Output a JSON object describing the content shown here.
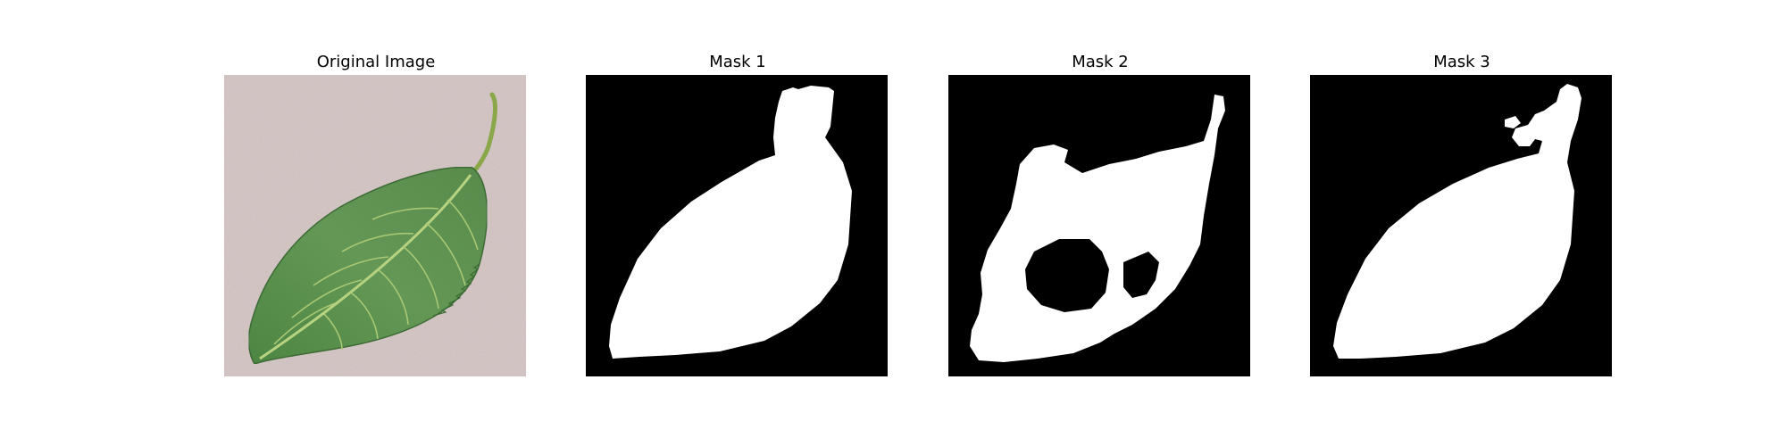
{
  "figure": {
    "panels": [
      {
        "id": "original",
        "title": "Original Image",
        "kind": "photo",
        "description_icon": "leaf-photo-icon"
      },
      {
        "id": "mask1",
        "title": "Mask 1",
        "kind": "binary-mask"
      },
      {
        "id": "mask2",
        "title": "Mask 2",
        "kind": "binary-mask"
      },
      {
        "id": "mask3",
        "title": "Mask 3",
        "kind": "binary-mask"
      }
    ],
    "colors": {
      "background": "#ffffff",
      "mask_background": "#000000",
      "mask_foreground": "#ffffff",
      "photo_background": "#d8c9c8",
      "leaf_green": "#5f9352",
      "leaf_vein": "#b6d27d"
    }
  }
}
